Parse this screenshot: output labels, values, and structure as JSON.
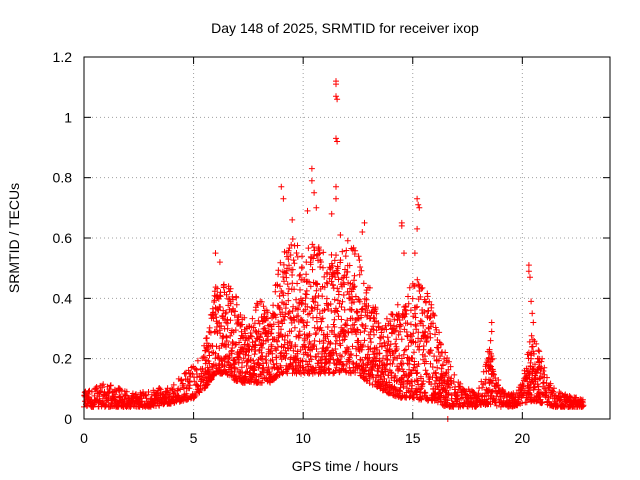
{
  "chart_data": {
    "type": "scatter",
    "title": "Day 148 of 2025, SRMTID for receiver ixop",
    "xlabel": "GPS time / hours",
    "ylabel": "SRMTID / TECUs",
    "xlim": [
      0,
      24
    ],
    "ylim": [
      0,
      1.2
    ],
    "x_ticks": [
      0,
      5,
      10,
      15,
      20
    ],
    "x_tick_labels": [
      "0",
      "5",
      "10",
      "15",
      "20"
    ],
    "y_ticks": [
      0,
      0.2,
      0.4,
      0.6,
      0.8,
      1.0,
      1.2
    ],
    "y_tick_labels": [
      "0",
      "0.2",
      "0.4",
      "0.6",
      "0.8",
      "1",
      "1.2"
    ],
    "grid": true,
    "marker": "+",
    "color": "#ff0000",
    "envelope": {
      "x": [
        0,
        1,
        2,
        3,
        4,
        5,
        5.5,
        6,
        6.5,
        7,
        7.5,
        8,
        8.5,
        9,
        9.5,
        10,
        10.5,
        11,
        11.5,
        12,
        12.5,
        13,
        13.5,
        14,
        14.5,
        15,
        15.5,
        16,
        16.5,
        17,
        17.5,
        18,
        18.5,
        19,
        19.5,
        20,
        20.5,
        21,
        21.5,
        22,
        22.8
      ],
      "low": [
        0.04,
        0.04,
        0.04,
        0.04,
        0.05,
        0.07,
        0.1,
        0.15,
        0.15,
        0.12,
        0.12,
        0.12,
        0.12,
        0.15,
        0.15,
        0.15,
        0.15,
        0.15,
        0.15,
        0.15,
        0.15,
        0.12,
        0.1,
        0.08,
        0.07,
        0.07,
        0.06,
        0.06,
        0.04,
        0.04,
        0.04,
        0.04,
        0.05,
        0.04,
        0.04,
        0.05,
        0.06,
        0.05,
        0.04,
        0.04,
        0.04
      ],
      "high": [
        0.09,
        0.12,
        0.09,
        0.09,
        0.12,
        0.18,
        0.25,
        0.45,
        0.45,
        0.4,
        0.32,
        0.4,
        0.35,
        0.55,
        0.6,
        0.55,
        0.6,
        0.55,
        0.55,
        0.6,
        0.55,
        0.45,
        0.32,
        0.35,
        0.4,
        0.45,
        0.48,
        0.35,
        0.22,
        0.13,
        0.1,
        0.1,
        0.25,
        0.1,
        0.09,
        0.12,
        0.35,
        0.15,
        0.1,
        0.08,
        0.07
      ]
    },
    "spikes": [
      {
        "x": 6.0,
        "y": 0.55
      },
      {
        "x": 6.2,
        "y": 0.52
      },
      {
        "x": 6.6,
        "y": 0.44
      },
      {
        "x": 9.0,
        "y": 0.77
      },
      {
        "x": 9.1,
        "y": 0.73
      },
      {
        "x": 9.5,
        "y": 0.66
      },
      {
        "x": 10.2,
        "y": 0.69
      },
      {
        "x": 10.4,
        "y": 0.83
      },
      {
        "x": 10.4,
        "y": 0.79
      },
      {
        "x": 10.5,
        "y": 0.75
      },
      {
        "x": 10.6,
        "y": 0.7
      },
      {
        "x": 11.5,
        "y": 1.12
      },
      {
        "x": 11.5,
        "y": 1.11
      },
      {
        "x": 11.5,
        "y": 1.07
      },
      {
        "x": 11.55,
        "y": 1.06
      },
      {
        "x": 11.5,
        "y": 0.93
      },
      {
        "x": 11.55,
        "y": 0.92
      },
      {
        "x": 11.5,
        "y": 0.77
      },
      {
        "x": 11.5,
        "y": 0.73
      },
      {
        "x": 11.3,
        "y": 0.68
      },
      {
        "x": 11.7,
        "y": 0.61
      },
      {
        "x": 12.8,
        "y": 0.65
      },
      {
        "x": 12.7,
        "y": 0.62
      },
      {
        "x": 14.5,
        "y": 0.65
      },
      {
        "x": 14.5,
        "y": 0.64
      },
      {
        "x": 14.6,
        "y": 0.55
      },
      {
        "x": 15.2,
        "y": 0.73
      },
      {
        "x": 15.25,
        "y": 0.71
      },
      {
        "x": 15.3,
        "y": 0.7
      },
      {
        "x": 15.2,
        "y": 0.63
      },
      {
        "x": 15.1,
        "y": 0.55
      },
      {
        "x": 16.6,
        "y": 0.0
      },
      {
        "x": 18.6,
        "y": 0.32
      },
      {
        "x": 18.6,
        "y": 0.29
      },
      {
        "x": 18.55,
        "y": 0.26
      },
      {
        "x": 18.5,
        "y": 0.23
      },
      {
        "x": 18.65,
        "y": 0.2
      },
      {
        "x": 20.3,
        "y": 0.51
      },
      {
        "x": 20.3,
        "y": 0.49
      },
      {
        "x": 20.35,
        "y": 0.47
      },
      {
        "x": 20.4,
        "y": 0.39
      },
      {
        "x": 20.45,
        "y": 0.35
      },
      {
        "x": 20.5,
        "y": 0.32
      },
      {
        "x": 20.3,
        "y": 0.22
      },
      {
        "x": 20.4,
        "y": 0.2
      },
      {
        "x": 20.9,
        "y": 0.2
      },
      {
        "x": 21.0,
        "y": 0.17
      }
    ]
  }
}
